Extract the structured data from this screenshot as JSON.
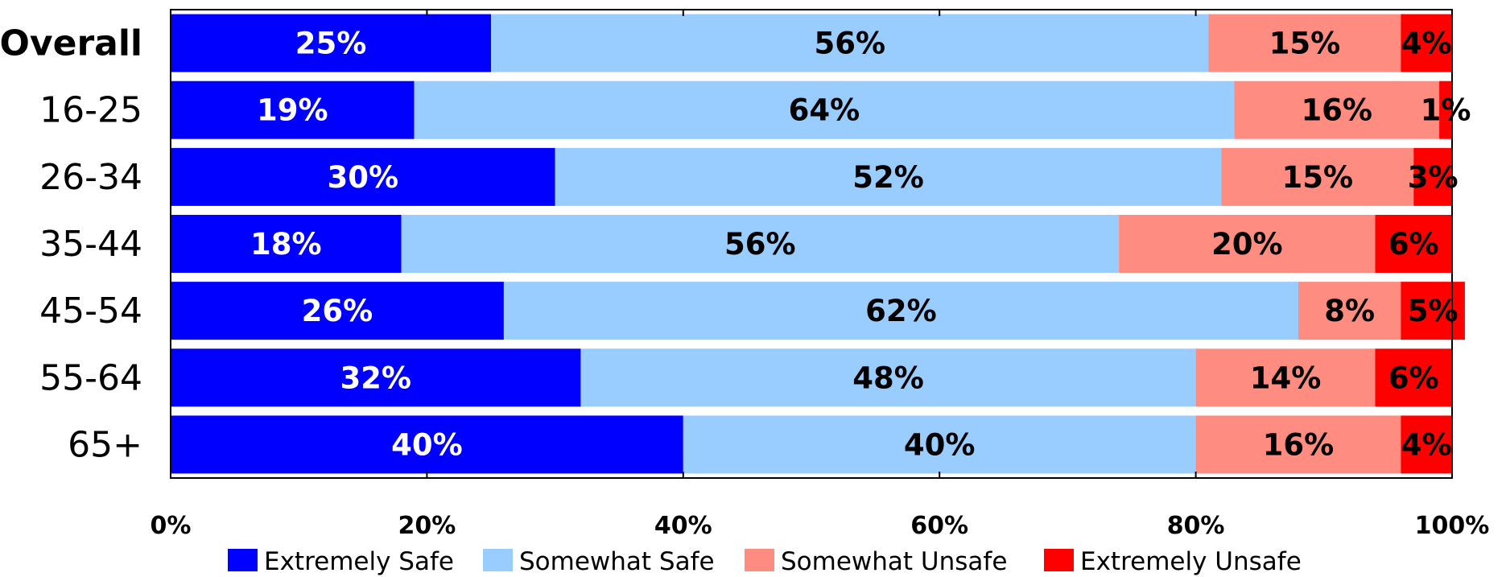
{
  "chart_data": {
    "type": "bar",
    "orientation": "horizontal",
    "stacked": true,
    "categories": [
      "Overall",
      "16-25",
      "26-34",
      "35-44",
      "45-54",
      "55-64",
      "65+"
    ],
    "bold_categories": [
      "Overall"
    ],
    "series": [
      {
        "name": "Extremely Safe",
        "color": "#0000ff",
        "label_color": "#ffffff",
        "values": [
          25,
          19,
          30,
          18,
          26,
          32,
          40
        ],
        "labels": [
          "25%",
          "19%",
          "30%",
          "18%",
          "26%",
          "32%",
          "40%"
        ]
      },
      {
        "name": "Somewhat Safe",
        "color": "#99ccff",
        "label_color": "#000000",
        "values": [
          56,
          64,
          52,
          56,
          62,
          48,
          40
        ],
        "labels": [
          "56%",
          "64%",
          "52%",
          "56%",
          "62%",
          "48%",
          "40%"
        ]
      },
      {
        "name": "Somewhat Unsafe",
        "color": "#ff8c80",
        "label_color": "#000000",
        "values": [
          15,
          16,
          15,
          20,
          8,
          14,
          16
        ],
        "labels": [
          "15%",
          "16%",
          "15%",
          "20%",
          "8%",
          "14%",
          "16%"
        ]
      },
      {
        "name": "Extremely Unsafe",
        "color": "#ff0000",
        "label_color": "#000000",
        "values": [
          4,
          1,
          3,
          6,
          5,
          6,
          4
        ],
        "labels": [
          "4%",
          "1%",
          "3%",
          "6%",
          "5%",
          "6%",
          "4%"
        ]
      }
    ],
    "xlim": [
      0,
      100
    ],
    "xticks": [
      0,
      20,
      40,
      60,
      80,
      100
    ],
    "xtick_labels": [
      "0%",
      "20%",
      "40%",
      "60%",
      "80%",
      "100%"
    ],
    "title": "",
    "xlabel": "",
    "ylabel": "",
    "grid": false,
    "legend_position": "bottom"
  }
}
